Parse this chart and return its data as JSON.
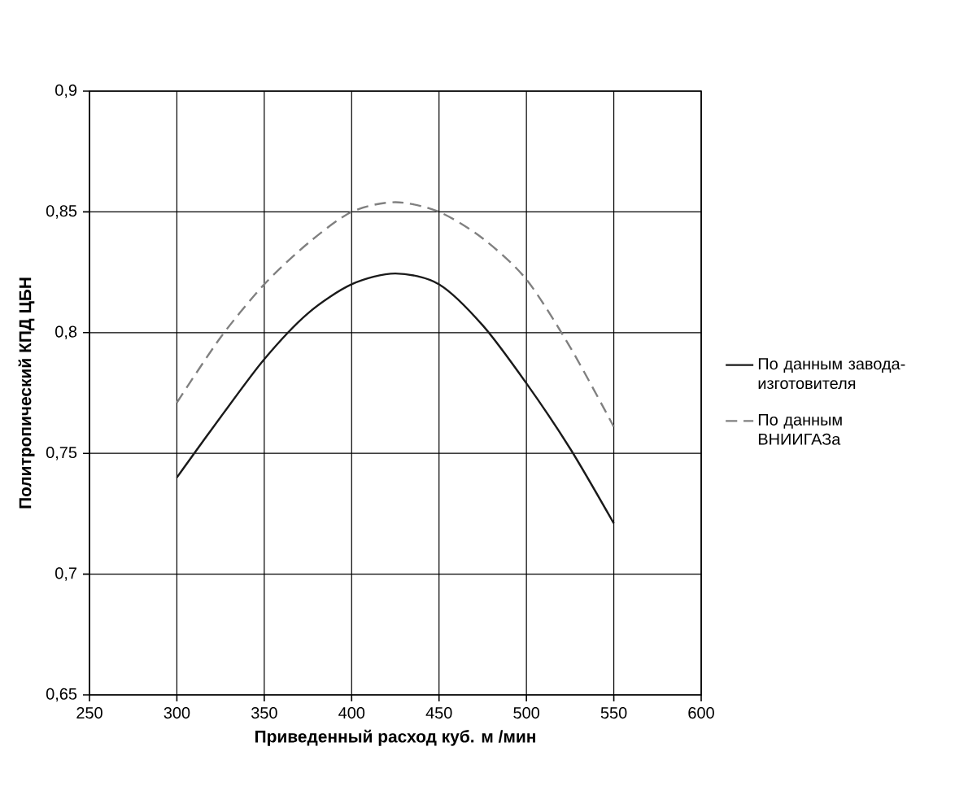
{
  "chart_data": {
    "type": "line",
    "xlabel": "Приведенный расход куб. м /мин",
    "ylabel": "Политропический КПД ЦБН",
    "x": [
      300,
      325,
      350,
      375,
      400,
      425,
      450,
      475,
      500,
      525,
      550
    ],
    "series": [
      {
        "name": "По данным завода-изготовителя",
        "color": "#1a1a1a",
        "line_style": "solid",
        "values": [
          0.74,
          0.765,
          0.789,
          0.808,
          0.82,
          0.8245,
          0.82,
          0.803,
          0.779,
          0.752,
          0.721
        ]
      },
      {
        "name": "По данным ВНИИГАЗа",
        "color": "#808080",
        "line_style": "dashed",
        "values": [
          0.771,
          0.798,
          0.82,
          0.837,
          0.85,
          0.854,
          0.85,
          0.839,
          0.822,
          0.794,
          0.761
        ]
      }
    ],
    "xlim": [
      250,
      600
    ],
    "ylim": [
      0.65,
      0.9
    ],
    "xticks": [
      250,
      300,
      350,
      400,
      450,
      500,
      550,
      600
    ],
    "yticks": [
      {
        "value": 0.65,
        "label": "0,65"
      },
      {
        "value": 0.7,
        "label": "0,7"
      },
      {
        "value": 0.75,
        "label": "0,75"
      },
      {
        "value": 0.8,
        "label": "0,8"
      },
      {
        "value": 0.85,
        "label": "0,85"
      },
      {
        "value": 0.9,
        "label": "0,9"
      }
    ],
    "grid": true,
    "legend": "right",
    "marker": "none"
  }
}
